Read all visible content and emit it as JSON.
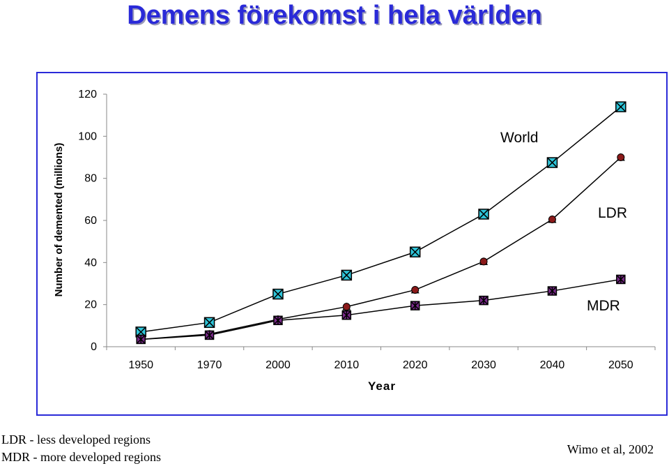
{
  "slide": {
    "title": "Demens förekomst i hela världen",
    "notes": [
      "LDR - less developed regions",
      "MDR - more developed regions"
    ],
    "source": "Wimo et al, 2002"
  },
  "colors": {
    "title": "#2a2ad8",
    "frame": "#2a2ad8",
    "world_marker": "#2ec4d8",
    "ldr_marker": "#8b1a1a",
    "mdr_marker": "#7a2a8a",
    "line": "#000000"
  },
  "chart_data": {
    "type": "line",
    "title": "",
    "xlabel": "Year",
    "ylabel": "Number of demented (millions)",
    "categories": [
      "1950",
      "1970",
      "2000",
      "2010",
      "2020",
      "2030",
      "2040",
      "2050"
    ],
    "ylim": [
      0,
      120
    ],
    "yticks": [
      0,
      20,
      40,
      60,
      80,
      100,
      120
    ],
    "grid": false,
    "series": [
      {
        "name": "World",
        "marker": "x-box",
        "values": [
          7,
          11.5,
          25,
          34,
          45,
          63,
          87.5,
          114
        ]
      },
      {
        "name": "LDR",
        "marker": "circle",
        "values": [
          3.5,
          6,
          13,
          19,
          27,
          40.5,
          60.5,
          90
        ]
      },
      {
        "name": "MDR",
        "marker": "star-box",
        "values": [
          3.5,
          5.5,
          12.5,
          15,
          19.5,
          22,
          26.5,
          32
        ]
      }
    ]
  }
}
